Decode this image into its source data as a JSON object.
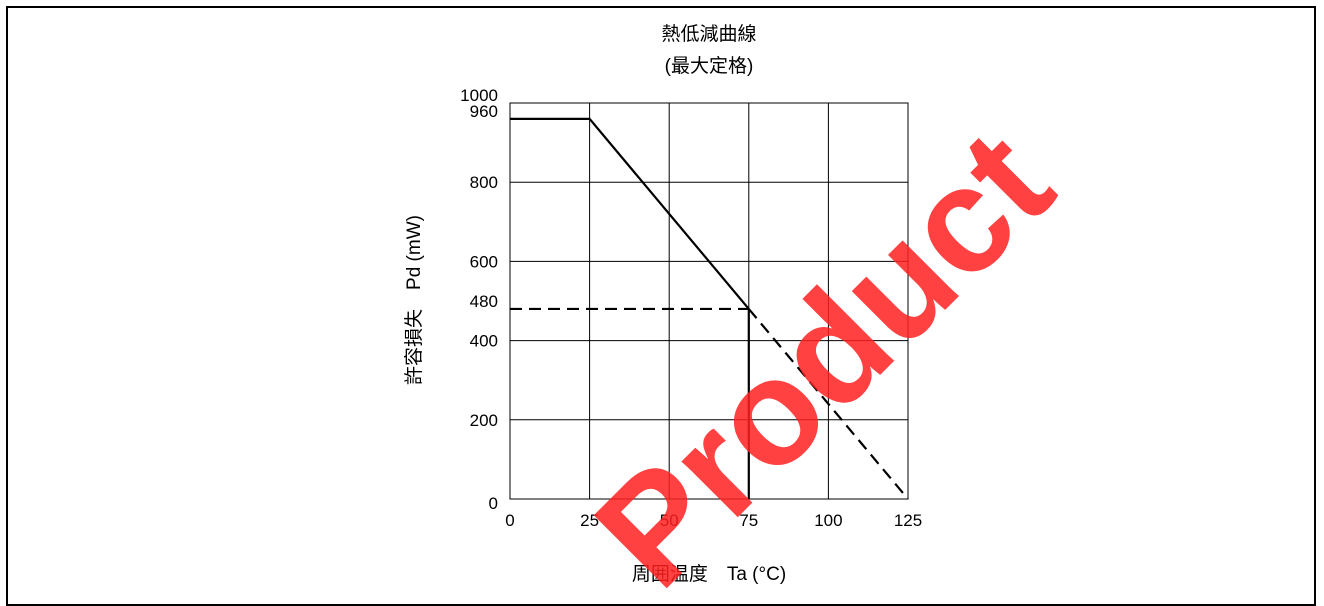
{
  "chart_data": {
    "type": "line",
    "title": "熱低減曲線",
    "subtitle": "(最大定格)",
    "xlabel": "周囲温度　Ta (°C)",
    "ylabel": "許容損失　Pd (mW)",
    "xlim": [
      0,
      125
    ],
    "ylim": [
      0,
      1000
    ],
    "x_ticks": [
      0,
      25,
      50,
      75,
      100,
      125
    ],
    "x_tick_labels": [
      "0",
      "25",
      "50",
      "75",
      "100",
      "125"
    ],
    "y_ticks": [
      0,
      200,
      400,
      600,
      800,
      1000
    ],
    "y_tick_labels": [
      "0",
      "200",
      "400",
      "600",
      "800",
      "1000"
    ],
    "y_extra_ticks": [
      960,
      480
    ],
    "y_extra_tick_labels": [
      "960",
      "480"
    ],
    "grid": true,
    "series": [
      {
        "style": "solid",
        "x": [
          0,
          25,
          75
        ],
        "y": [
          960,
          960,
          480
        ]
      },
      {
        "style": "solid",
        "x": [
          75,
          75
        ],
        "y": [
          480,
          0
        ]
      },
      {
        "style": "dashed",
        "x": [
          0,
          75
        ],
        "y": [
          480,
          480
        ]
      },
      {
        "style": "dashed",
        "x": [
          75,
          125
        ],
        "y": [
          480,
          0
        ]
      }
    ],
    "watermark": "Product"
  }
}
